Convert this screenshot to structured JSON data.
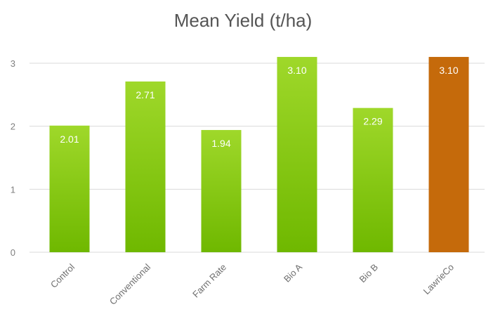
{
  "chart_data": {
    "type": "bar",
    "title": "Mean Yield (t/ha)",
    "categories": [
      "Control",
      "Conventional",
      "Farm Rate",
      "Bio A",
      "Bio B",
      "LawrieCo"
    ],
    "values": [
      2.01,
      2.71,
      1.94,
      3.1,
      2.29,
      3.1
    ],
    "data_labels": [
      "2.01",
      "2.71",
      "1.94",
      "3.10",
      "2.29",
      "3.10"
    ],
    "ylim": [
      0,
      3
    ],
    "yticks": [
      0,
      1,
      2,
      3
    ],
    "xlabel": "",
    "ylabel": "",
    "grid": true,
    "legend": "none",
    "colors": {
      "default_top": "#9fd82a",
      "default_bottom": "#6fb800",
      "highlight": "#c56a0b",
      "gridline": "#d9d9d9"
    },
    "highlight_index": 5
  }
}
